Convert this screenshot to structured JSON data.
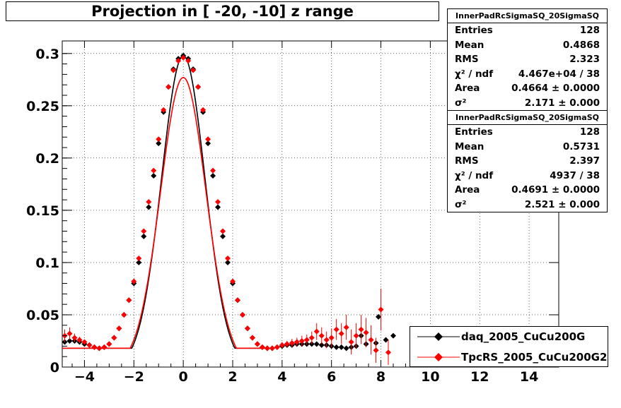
{
  "title": "Projection in [ -20, -10] z range",
  "stats": [
    {
      "header": "InnerPadRcSigmaSQ_20SigmaSQ",
      "rows": [
        {
          "k": "Entries",
          "v": "128"
        },
        {
          "k": "Mean",
          "v": "0.4868"
        },
        {
          "k": "RMS",
          "v": "2.323"
        },
        {
          "k": "χ² / ndf",
          "v": "4.467e+04 / 38"
        },
        {
          "k": "Area",
          "v": "0.4664 ± 0.0000"
        },
        {
          "k": "σ²",
          "v": "2.171 ± 0.000"
        }
      ]
    },
    {
      "header": "InnerPadRcSigmaSQ_20SigmaSQ",
      "rows": [
        {
          "k": "Entries",
          "v": "128"
        },
        {
          "k": "Mean",
          "v": "0.5731"
        },
        {
          "k": "RMS",
          "v": "2.397"
        },
        {
          "k": "χ² / ndf",
          "v": "4937 / 38"
        },
        {
          "k": "Area",
          "v": "0.4691 ± 0.0000"
        },
        {
          "k": "σ²",
          "v": "2.521 ± 0.000"
        }
      ]
    }
  ],
  "legend": [
    {
      "label": "daq_2005_CuCu200G",
      "color": "#000000"
    },
    {
      "label": "TpcRS_2005_CuCu200G2",
      "color": "#ff0000"
    }
  ],
  "chart_data": {
    "type": "scatter",
    "xlim": [
      -4.9,
      15.2
    ],
    "ylim": [
      0,
      0.312
    ],
    "grid": true,
    "x_ticks": [
      "−4",
      "−2",
      "0",
      "2",
      "4",
      "6",
      "8",
      "10",
      "12",
      "14"
    ],
    "x_tick_values": [
      -4,
      -2,
      0,
      2,
      4,
      6,
      8,
      10,
      12,
      14
    ],
    "y_ticks": [
      "0",
      "0.05",
      "0.1",
      "0.15",
      "0.2",
      "0.25",
      "0.3"
    ],
    "y_tick_values": [
      0,
      0.05,
      0.1,
      0.15,
      0.2,
      0.25,
      0.3
    ],
    "series": [
      {
        "name": "daq_2005_CuCu200G",
        "color": "#000000",
        "points": [
          [
            -4.8,
            0.024
          ],
          [
            -4.6,
            0.025
          ],
          [
            -4.4,
            0.025
          ],
          [
            -4.2,
            0.024
          ],
          [
            -4.0,
            0.022
          ],
          [
            -3.8,
            0.021
          ],
          [
            -3.6,
            0.019
          ],
          [
            -3.4,
            0.018
          ],
          [
            -3.2,
            0.019
          ],
          [
            -3.0,
            0.022
          ],
          [
            -2.8,
            0.028
          ],
          [
            -2.6,
            0.037
          ],
          [
            -2.4,
            0.05
          ],
          [
            -2.2,
            0.064
          ],
          [
            -2.0,
            0.08
          ],
          [
            -1.8,
            0.1
          ],
          [
            -1.6,
            0.125
          ],
          [
            -1.4,
            0.153
          ],
          [
            -1.2,
            0.183
          ],
          [
            -1.0,
            0.214
          ],
          [
            -0.8,
            0.244
          ],
          [
            -0.6,
            0.268
          ],
          [
            -0.4,
            0.285
          ],
          [
            -0.2,
            0.295
          ],
          [
            0.0,
            0.298
          ],
          [
            0.2,
            0.295
          ],
          [
            0.4,
            0.285
          ],
          [
            0.6,
            0.268
          ],
          [
            0.8,
            0.244
          ],
          [
            1.0,
            0.214
          ],
          [
            1.2,
            0.183
          ],
          [
            1.4,
            0.153
          ],
          [
            1.6,
            0.125
          ],
          [
            1.8,
            0.1
          ],
          [
            2.0,
            0.08
          ],
          [
            2.2,
            0.064
          ],
          [
            2.4,
            0.05
          ],
          [
            2.6,
            0.037
          ],
          [
            2.8,
            0.028
          ],
          [
            3.0,
            0.022
          ],
          [
            3.2,
            0.019
          ],
          [
            3.4,
            0.018
          ],
          [
            3.6,
            0.018
          ],
          [
            3.8,
            0.019
          ],
          [
            4.0,
            0.02
          ],
          [
            4.2,
            0.021
          ],
          [
            4.4,
            0.021
          ],
          [
            4.6,
            0.022
          ],
          [
            4.8,
            0.022
          ],
          [
            5.0,
            0.022
          ],
          [
            5.2,
            0.022
          ],
          [
            5.4,
            0.022
          ],
          [
            5.6,
            0.021
          ],
          [
            5.8,
            0.021
          ],
          [
            6.0,
            0.02
          ],
          [
            6.2,
            0.019
          ],
          [
            6.4,
            0.019
          ],
          [
            6.6,
            0.018
          ],
          [
            6.8,
            0.019
          ],
          [
            7.0,
            0.02
          ],
          [
            7.4,
            0.022
          ],
          [
            7.8,
            0.023
          ],
          [
            8.2,
            0.026
          ],
          [
            8.5,
            0.03
          ],
          [
            7.2,
            0.03
          ],
          [
            7.9,
            0.048
          ]
        ]
      },
      {
        "name": "TpcRS_2005_CuCu200G2",
        "color": "#ff0000",
        "points": [
          [
            -4.8,
            0.03,
            0.006
          ],
          [
            -4.6,
            0.032,
            0.006
          ],
          [
            -4.4,
            0.028,
            0.004
          ],
          [
            -4.2,
            0.026,
            0.003
          ],
          [
            -4.0,
            0.024,
            0.002
          ],
          [
            -3.8,
            0.021,
            0.002
          ],
          [
            -3.6,
            0.019,
            0.002
          ],
          [
            -3.4,
            0.018,
            0.002
          ],
          [
            -3.2,
            0.019,
            0.002
          ],
          [
            -3.0,
            0.022,
            0.002
          ],
          [
            -2.8,
            0.028,
            0.002
          ],
          [
            -2.6,
            0.037,
            0.002
          ],
          [
            -2.4,
            0.05,
            0.002
          ],
          [
            -2.2,
            0.064,
            0.002
          ],
          [
            -2.0,
            0.082,
            0.002
          ],
          [
            -1.8,
            0.104,
            0.002
          ],
          [
            -1.6,
            0.13,
            0.002
          ],
          [
            -1.4,
            0.158,
            0.002
          ],
          [
            -1.2,
            0.188,
            0.002
          ],
          [
            -1.0,
            0.218,
            0.002
          ],
          [
            -0.8,
            0.246,
            0.002
          ],
          [
            -0.6,
            0.268,
            0.002
          ],
          [
            -0.4,
            0.284,
            0.002
          ],
          [
            -0.2,
            0.293,
            0.002
          ],
          [
            0.0,
            0.296,
            0.002
          ],
          [
            0.2,
            0.293,
            0.002
          ],
          [
            0.4,
            0.284,
            0.002
          ],
          [
            0.6,
            0.268,
            0.002
          ],
          [
            0.8,
            0.246,
            0.002
          ],
          [
            1.0,
            0.218,
            0.002
          ],
          [
            1.2,
            0.188,
            0.002
          ],
          [
            1.4,
            0.158,
            0.002
          ],
          [
            1.6,
            0.13,
            0.002
          ],
          [
            1.8,
            0.104,
            0.002
          ],
          [
            2.0,
            0.082,
            0.002
          ],
          [
            2.2,
            0.064,
            0.002
          ],
          [
            2.4,
            0.05,
            0.002
          ],
          [
            2.6,
            0.037,
            0.002
          ],
          [
            2.8,
            0.028,
            0.002
          ],
          [
            3.0,
            0.022,
            0.002
          ],
          [
            3.2,
            0.019,
            0.002
          ],
          [
            3.4,
            0.018,
            0.002
          ],
          [
            3.6,
            0.018,
            0.002
          ],
          [
            3.8,
            0.019,
            0.002
          ],
          [
            4.0,
            0.021,
            0.003
          ],
          [
            4.2,
            0.022,
            0.003
          ],
          [
            4.4,
            0.023,
            0.004
          ],
          [
            4.6,
            0.024,
            0.004
          ],
          [
            4.8,
            0.025,
            0.005
          ],
          [
            5.0,
            0.026,
            0.005
          ],
          [
            5.2,
            0.028,
            0.006
          ],
          [
            5.4,
            0.034,
            0.008
          ],
          [
            5.6,
            0.03,
            0.008
          ],
          [
            5.8,
            0.026,
            0.008
          ],
          [
            6.0,
            0.028,
            0.009
          ],
          [
            6.2,
            0.036,
            0.01
          ],
          [
            6.4,
            0.032,
            0.01
          ],
          [
            6.6,
            0.038,
            0.012
          ],
          [
            6.8,
            0.024,
            0.012
          ],
          [
            7.0,
            0.03,
            0.012
          ],
          [
            7.2,
            0.036,
            0.014
          ],
          [
            7.4,
            0.033,
            0.014
          ],
          [
            7.6,
            0.026,
            0.014
          ],
          [
            7.8,
            0.016,
            0.012
          ],
          [
            8.0,
            0.055,
            0.02
          ],
          [
            8.3,
            0.014,
            0.012
          ]
        ]
      }
    ],
    "fit_curves": [
      {
        "color": "#000000",
        "amplitude": 0.298,
        "sigma": 0.88,
        "baseline": 0.018
      },
      {
        "color": "#ff0000",
        "amplitude": 0.277,
        "sigma": 0.92,
        "baseline": 0.018
      }
    ]
  }
}
